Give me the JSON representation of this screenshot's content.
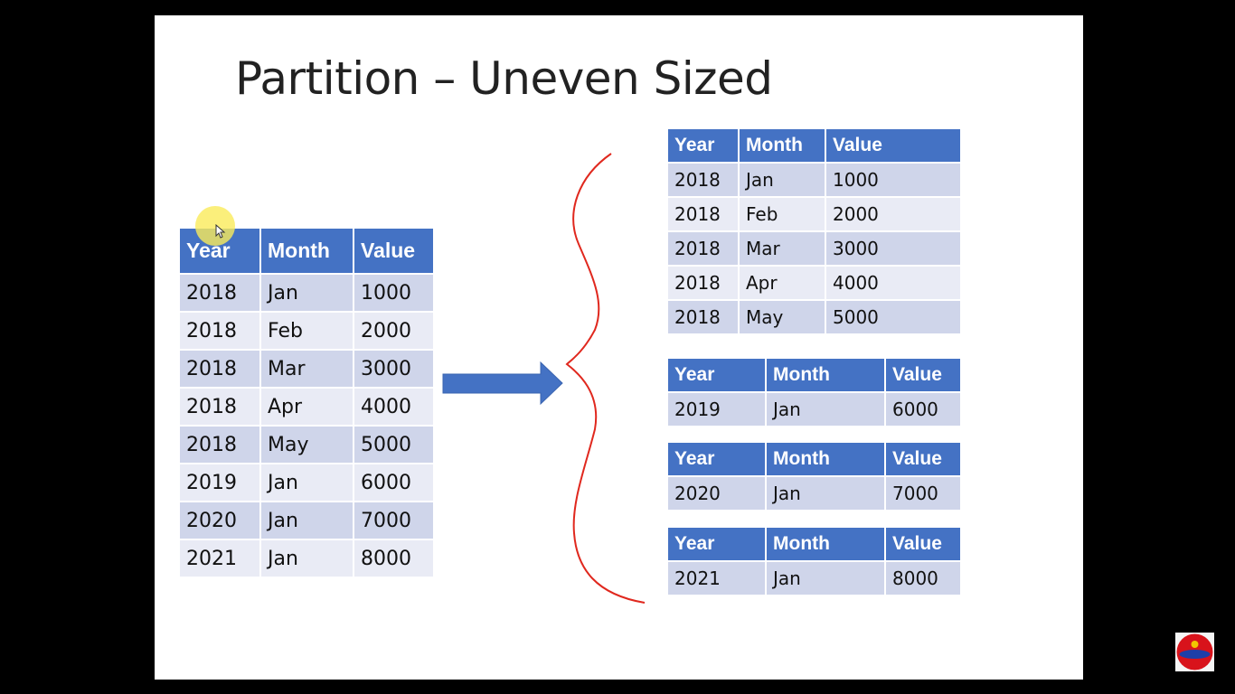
{
  "title": "Partition – Uneven Sized",
  "headers": [
    "Year",
    "Month",
    "Value"
  ],
  "source_table": [
    [
      "2018",
      "Jan",
      "1000"
    ],
    [
      "2018",
      "Feb",
      "2000"
    ],
    [
      "2018",
      "Mar",
      "3000"
    ],
    [
      "2018",
      "Apr",
      "4000"
    ],
    [
      "2018",
      "May",
      "5000"
    ],
    [
      "2019",
      "Jan",
      "6000"
    ],
    [
      "2020",
      "Jan",
      "7000"
    ],
    [
      "2021",
      "Jan",
      "8000"
    ]
  ],
  "partitions": [
    [
      [
        "2018",
        "Jan",
        "1000"
      ],
      [
        "2018",
        "Feb",
        "2000"
      ],
      [
        "2018",
        "Mar",
        "3000"
      ],
      [
        "2018",
        "Apr",
        "4000"
      ],
      [
        "2018",
        "May",
        "5000"
      ]
    ],
    [
      [
        "2019",
        "Jan",
        "6000"
      ]
    ],
    [
      [
        "2020",
        "Jan",
        "7000"
      ]
    ],
    [
      [
        "2021",
        "Jan",
        "8000"
      ]
    ]
  ],
  "colors": {
    "header": "#4472c4",
    "row_odd": "#cfd5ea",
    "row_even": "#e9ebf5",
    "arrow": "#4472c4",
    "brace": "#e0281e"
  }
}
